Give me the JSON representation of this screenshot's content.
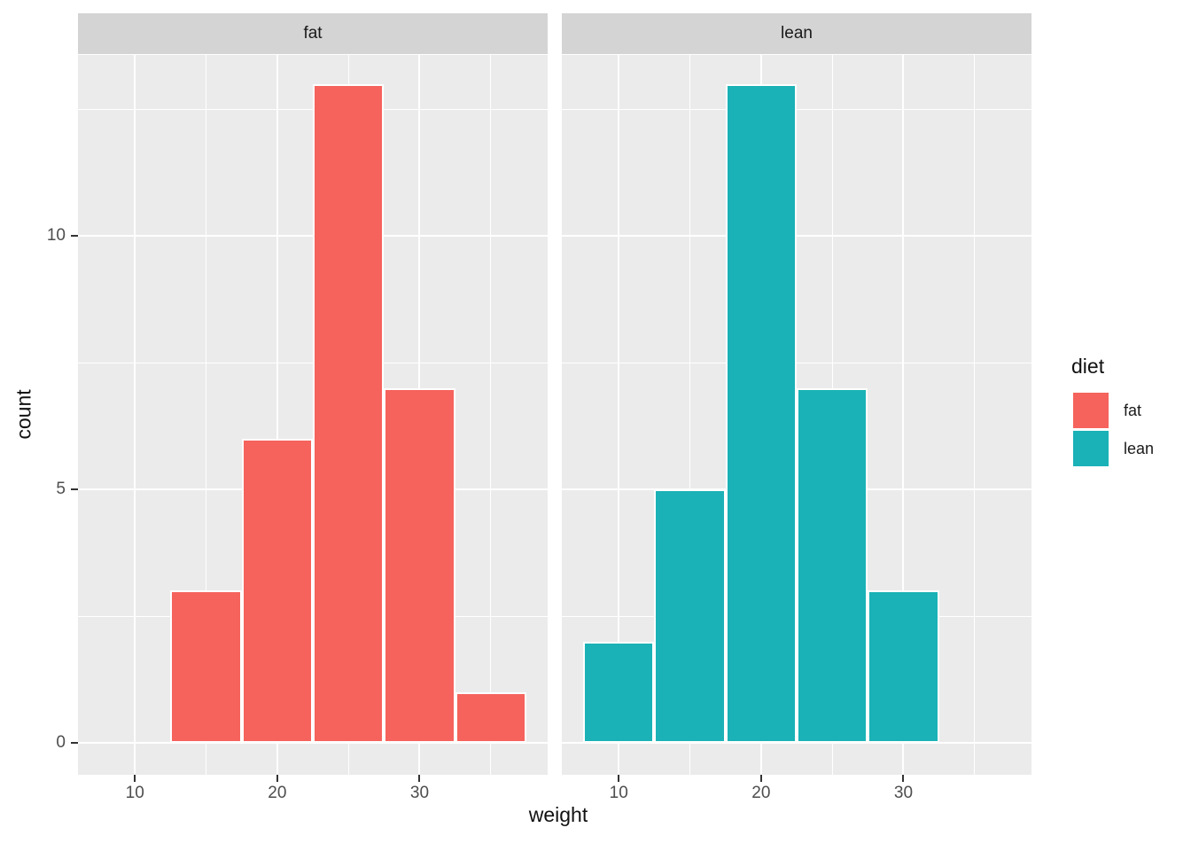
{
  "chart_data": {
    "type": "histogram",
    "title": "",
    "xlabel": "weight",
    "ylabel": "count",
    "binwidth": 5,
    "grid": true,
    "x_axis": {
      "min": 6,
      "max": 39,
      "major_ticks": [
        10,
        20,
        30
      ],
      "minor_ticks": [
        15,
        25,
        35
      ]
    },
    "y_axis": {
      "min": -0.63,
      "max": 13.57,
      "major_ticks": [
        0,
        5,
        10
      ],
      "minor_ticks": [
        2.5,
        7.5,
        12.5
      ]
    },
    "facets": [
      {
        "label": "fat",
        "color": "#F5635C",
        "bin_centers": [
          15,
          20,
          25,
          30,
          35
        ],
        "counts": [
          3,
          6,
          13,
          7,
          1
        ]
      },
      {
        "label": "lean",
        "color": "#1AB2B6",
        "bin_centers": [
          10,
          15,
          20,
          25,
          30
        ],
        "counts": [
          2,
          5,
          13,
          7,
          3
        ]
      }
    ],
    "legend": {
      "title": "diet",
      "position": "right",
      "entries": [
        {
          "label": "fat",
          "color": "#F5635C"
        },
        {
          "label": "lean",
          "color": "#1AB2B6"
        }
      ]
    }
  },
  "theme": {
    "background": "#FFFFFF",
    "panel_background": "#EBEBEB",
    "strip_background": "#D4D4D4",
    "grid_color": "#FFFFFF",
    "bar_border_color": "#FFFFFF",
    "tick_color": "#333333",
    "tick_label_color": "#4D4D4D",
    "text_color": "#1A1A1A"
  }
}
